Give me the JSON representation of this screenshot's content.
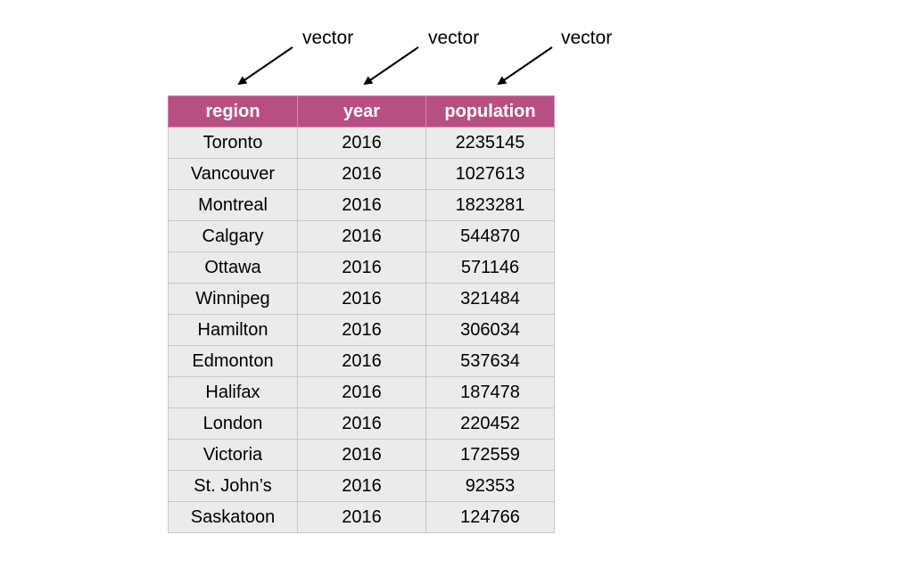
{
  "annotations": {
    "labels": [
      "vector",
      "vector",
      "vector"
    ]
  },
  "table": {
    "headers": [
      "region",
      "year",
      "population"
    ],
    "rows": [
      [
        "Toronto",
        "2016",
        "2235145"
      ],
      [
        "Vancouver",
        "2016",
        "1027613"
      ],
      [
        "Montreal",
        "2016",
        "1823281"
      ],
      [
        "Calgary",
        "2016",
        "544870"
      ],
      [
        "Ottawa",
        "2016",
        "571146"
      ],
      [
        "Winnipeg",
        "2016",
        "321484"
      ],
      [
        "Hamilton",
        "2016",
        "306034"
      ],
      [
        "Edmonton",
        "2016",
        "537634"
      ],
      [
        "Halifax",
        "2016",
        "187478"
      ],
      [
        "London",
        "2016",
        "220452"
      ],
      [
        "Victoria",
        "2016",
        "172559"
      ],
      [
        "St. John’s",
        "2016",
        "92353"
      ],
      [
        "Saskatoon",
        "2016",
        "124766"
      ]
    ]
  },
  "colors": {
    "header_background": "#b84f83",
    "header_text": "#ffffff",
    "cell_background": "#ebebeb",
    "border": "#c7c7c7",
    "arrow": "#000000"
  }
}
